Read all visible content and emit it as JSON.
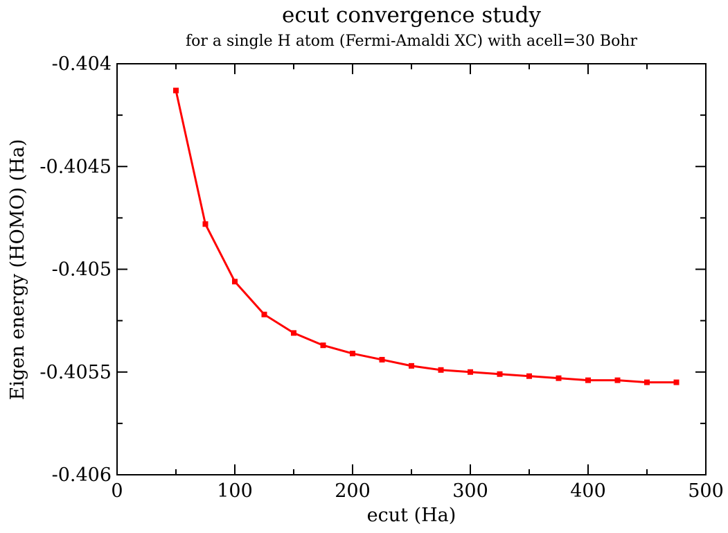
{
  "chart_data": {
    "type": "line",
    "title": "ecut convergence study",
    "subtitle": "for a single H atom (Fermi-Amaldi XC) with acell=30 Bohr",
    "xlabel": "ecut (Ha)",
    "ylabel": "Eigen energy (HOMO) (Ha)",
    "xlim": [
      0,
      500
    ],
    "ylim": [
      -0.406,
      -0.404
    ],
    "xticks": [
      0,
      100,
      200,
      300,
      400,
      500
    ],
    "xtick_labels": [
      "0",
      "100",
      "200",
      "300",
      "400",
      "500"
    ],
    "yticks": [
      -0.406,
      -0.4055,
      -0.405,
      -0.4045,
      -0.404
    ],
    "ytick_labels": [
      "-0.406",
      "-0.4055",
      "-0.405",
      "-0.4045",
      "-0.404"
    ],
    "grid": false,
    "legend": "none",
    "colors": {
      "series": "#ff0000",
      "axes": "#000000",
      "background": "#ffffff"
    },
    "series": [
      {
        "x": [
          50,
          75,
          100,
          125,
          150,
          175,
          200,
          225,
          250,
          275,
          300,
          325,
          350,
          375,
          400,
          425,
          450,
          475
        ],
        "y": [
          -0.40413,
          -0.40478,
          -0.40506,
          -0.40522,
          -0.40531,
          -0.40537,
          -0.40541,
          -0.40544,
          -0.40547,
          -0.40549,
          -0.4055,
          -0.40551,
          -0.40552,
          -0.40553,
          -0.40554,
          -0.40554,
          -0.40555,
          -0.40555
        ]
      }
    ]
  }
}
